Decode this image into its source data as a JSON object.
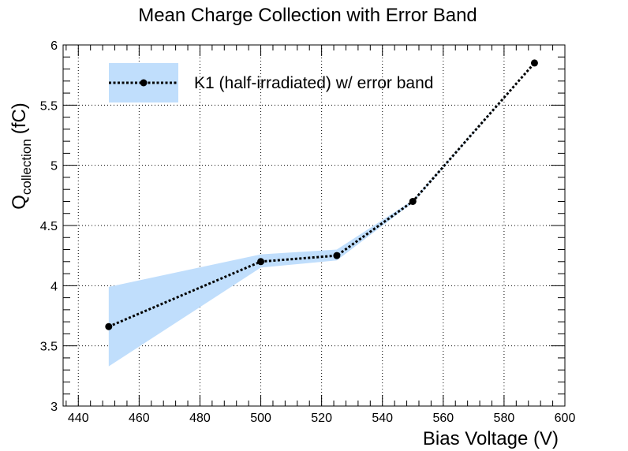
{
  "chart_data": {
    "type": "line",
    "title": "Mean Charge Collection with Error Band",
    "xlabel": "Bias Voltage (V)",
    "ylabel_main": "Q",
    "ylabel_sub": "collection",
    "ylabel_unit": "(fC)",
    "xlim": [
      435,
      600
    ],
    "ylim": [
      3,
      6
    ],
    "x_ticks": [
      440,
      460,
      480,
      500,
      520,
      540,
      560,
      580,
      600
    ],
    "y_ticks": [
      3,
      3.5,
      4,
      4.5,
      5,
      5.5,
      6
    ],
    "y_tick_labels": [
      "3",
      "3.5",
      "4",
      "4.5",
      "5",
      "5.5",
      "6"
    ],
    "grid": true,
    "legend_position": "top-left",
    "series": [
      {
        "name": "K1 (half-irradiated) w/ error band",
        "x": [
          450,
          500,
          525,
          550,
          590
        ],
        "y": [
          3.66,
          4.2,
          4.25,
          4.7,
          5.85
        ],
        "y_low": [
          3.33,
          4.15,
          4.21,
          4.69,
          5.85
        ],
        "y_high": [
          3.99,
          4.26,
          4.3,
          4.71,
          5.85
        ],
        "line_color": "#000000",
        "band_color": "#c0defc"
      }
    ]
  }
}
